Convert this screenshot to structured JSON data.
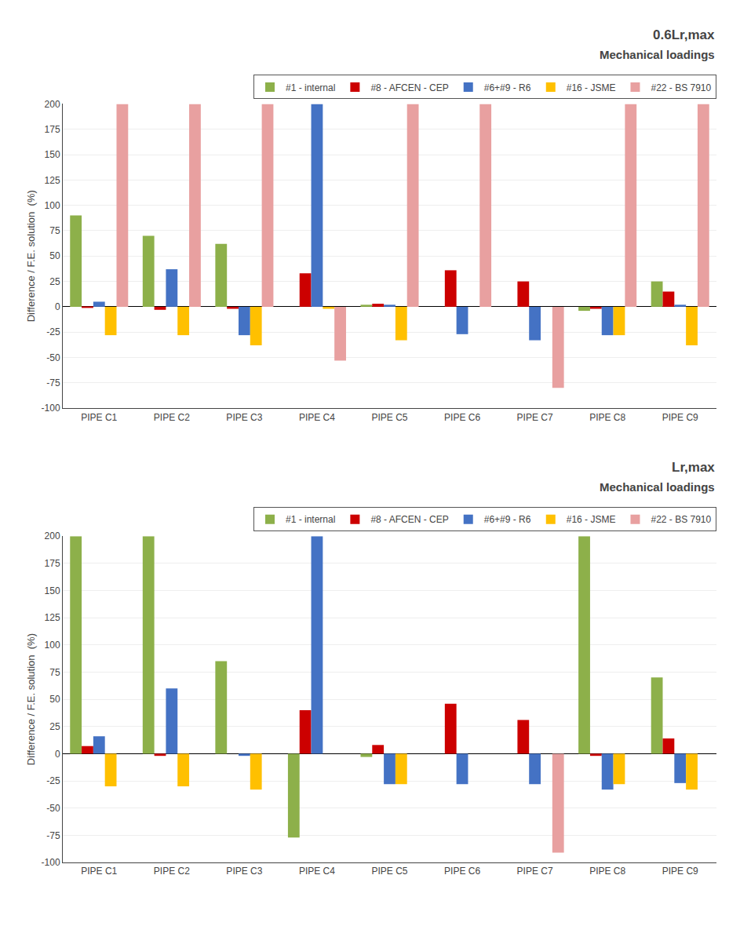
{
  "chart_data": [
    {
      "type": "bar",
      "title": "0.6Lr,max",
      "subtitle": "Mechanical loadings",
      "ylabel": "Difference / F.E. solution  (%)",
      "categories": [
        "PIPE C1",
        "PIPE C2",
        "PIPE C3",
        "PIPE C4",
        "PIPE C5",
        "PIPE C6",
        "PIPE C7",
        "PIPE C8",
        "PIPE C9"
      ],
      "series": [
        {
          "name": "#1 - internal",
          "color": "#8DB04A",
          "values": [
            90,
            70,
            62,
            0,
            2,
            0,
            0,
            -4,
            25
          ]
        },
        {
          "name": "#8 - AFCEN - CEP",
          "color": "#CC0000",
          "values": [
            -1,
            -3,
            -2,
            33,
            3,
            36,
            25,
            -2,
            15
          ]
        },
        {
          "name": "#6+#9 - R6",
          "color": "#4472C4",
          "values": [
            5,
            37,
            -28,
            200,
            2,
            -27,
            -33,
            -28,
            2
          ]
        },
        {
          "name": "#16 - JSME",
          "color": "#FFC000",
          "values": [
            -28,
            -28,
            -38,
            -2,
            -33,
            0,
            0,
            -28,
            -38
          ]
        },
        {
          "name": "#22 - BS 7910",
          "color": "#E8A0A0",
          "values": [
            200,
            200,
            200,
            -53,
            200,
            200,
            -80,
            200,
            200
          ]
        }
      ],
      "ylim": [
        -100,
        200
      ],
      "yticks": [
        -100,
        -75,
        -50,
        -25,
        0,
        25,
        50,
        75,
        100,
        125,
        150,
        175,
        200
      ],
      "grid": true,
      "legend": "upper right"
    },
    {
      "type": "bar",
      "title": "Lr,max",
      "subtitle": "Mechanical loadings",
      "ylabel": "Difference / F.E. solution  (%)",
      "categories": [
        "PIPE C1",
        "PIPE C2",
        "PIPE C3",
        "PIPE C4",
        "PIPE C5",
        "PIPE C6",
        "PIPE C7",
        "PIPE C8",
        "PIPE C9"
      ],
      "series": [
        {
          "name": "#1 - internal",
          "color": "#8DB04A",
          "values": [
            200,
            200,
            85,
            -77,
            -3,
            0,
            0,
            200,
            70
          ]
        },
        {
          "name": "#8 - AFCEN - CEP",
          "color": "#CC0000",
          "values": [
            7,
            -2,
            0,
            40,
            8,
            46,
            31,
            -2,
            14
          ]
        },
        {
          "name": "#6+#9 - R6",
          "color": "#4472C4",
          "values": [
            16,
            60,
            -2,
            200,
            -28,
            -28,
            -28,
            -33,
            -27
          ]
        },
        {
          "name": "#16 - JSME",
          "color": "#FFC000",
          "values": [
            -30,
            -30,
            -33,
            0,
            -28,
            0,
            0,
            -28,
            -33
          ]
        },
        {
          "name": "#22 - BS 7910",
          "color": "#E8A0A0",
          "values": [
            0,
            0,
            0,
            0,
            0,
            0,
            -91,
            0,
            0
          ]
        }
      ],
      "ylim": [
        -100,
        200
      ],
      "yticks": [
        -100,
        -75,
        -50,
        -25,
        0,
        25,
        50,
        75,
        100,
        125,
        150,
        175,
        200
      ],
      "grid": true,
      "legend": "upper right"
    }
  ]
}
